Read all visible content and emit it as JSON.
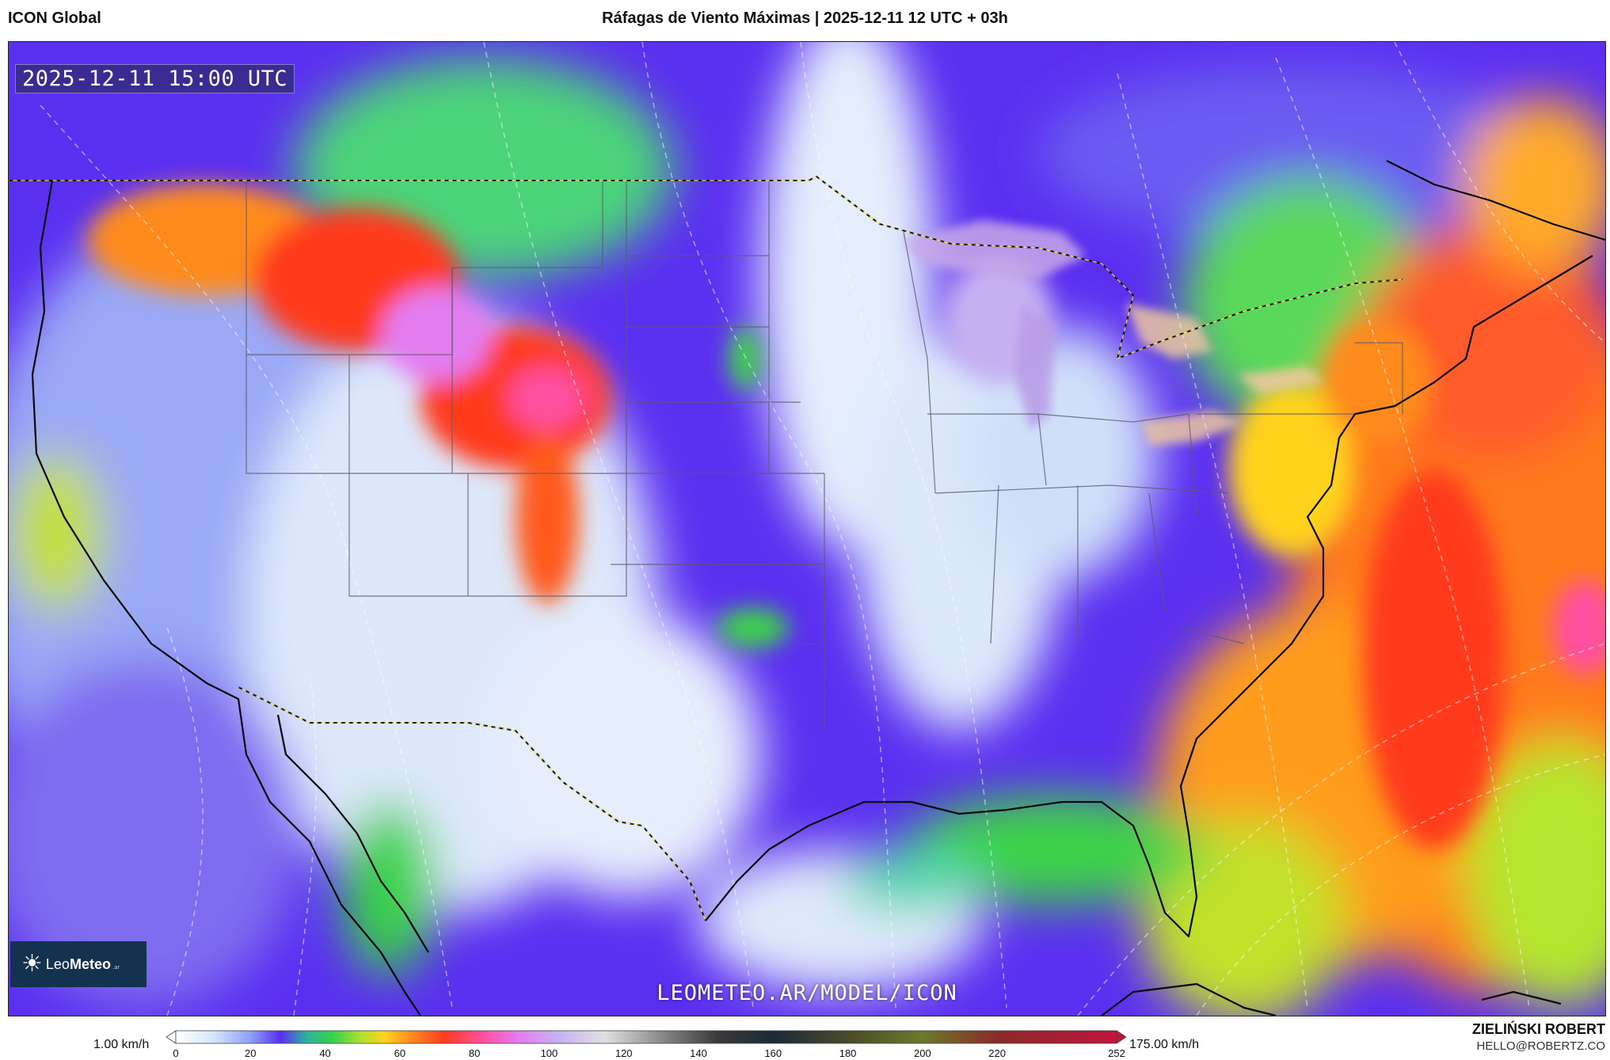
{
  "header": {
    "model": "ICON Global",
    "title": "Ráfagas de Viento Máximas | 2025-12-11 12 UTC + 03h"
  },
  "map": {
    "timestamp": "2025-12-11 15:00 UTC",
    "watermark": "LEOMETEO.AR/MODEL/ICON",
    "logo": {
      "name_light": "Leo",
      "name_bold": "Meteo",
      "suffix": ".ar",
      "icon": "sun-icon"
    }
  },
  "legend": {
    "min_label": "1.00 km/h",
    "max_label": "175.00 km/h",
    "ticks": [
      "0",
      "20",
      "40",
      "60",
      "80",
      "100",
      "120",
      "140",
      "160",
      "180",
      "200",
      "220",
      "252"
    ],
    "tick_values": [
      0,
      20,
      40,
      60,
      80,
      100,
      120,
      140,
      160,
      180,
      200,
      220,
      252
    ],
    "range": [
      0,
      252
    ],
    "colors": [
      {
        "value": 0,
        "color": "#ffffff"
      },
      {
        "value": 10,
        "color": "#d6e6fb"
      },
      {
        "value": 20,
        "color": "#8aa2f5"
      },
      {
        "value": 28,
        "color": "#5b2ff0"
      },
      {
        "value": 35,
        "color": "#2fb0a0"
      },
      {
        "value": 42,
        "color": "#35d24a"
      },
      {
        "value": 50,
        "color": "#b6e02e"
      },
      {
        "value": 56,
        "color": "#ffd21f"
      },
      {
        "value": 63,
        "color": "#ff8b1e"
      },
      {
        "value": 72,
        "color": "#ff3b1d"
      },
      {
        "value": 82,
        "color": "#ff4fa0"
      },
      {
        "value": 92,
        "color": "#e37df0"
      },
      {
        "value": 102,
        "color": "#c7b0f2"
      },
      {
        "value": 115,
        "color": "#e0e0e0"
      },
      {
        "value": 130,
        "color": "#8a8a8a"
      },
      {
        "value": 145,
        "color": "#3a3a3a"
      },
      {
        "value": 160,
        "color": "#1c2a3a"
      },
      {
        "value": 180,
        "color": "#4a4a2a"
      },
      {
        "value": 200,
        "color": "#6b7a2a"
      },
      {
        "value": 220,
        "color": "#8a2a2a"
      },
      {
        "value": 252,
        "color": "#c0143c"
      }
    ]
  },
  "author": {
    "name": "ZIELIŃSKI ROBERT",
    "email": "HELLO@ROBERTZ.CO"
  }
}
